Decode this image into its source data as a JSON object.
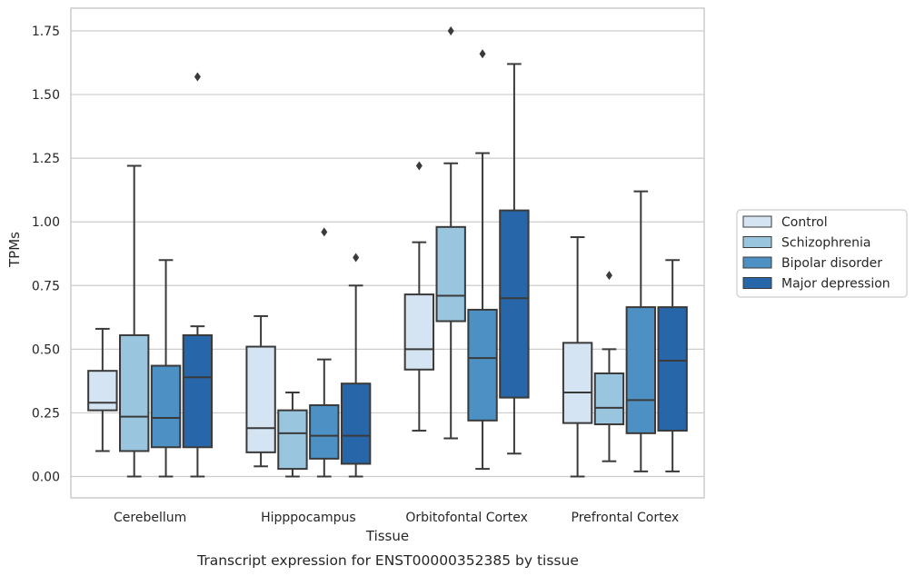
{
  "caption": "Transcript expression for ENST00000352385 by tissue",
  "chart_data": {
    "type": "box",
    "xlabel": "Tissue",
    "ylabel": "TPMs",
    "ylim": [
      -0.08,
      1.84
    ],
    "yticks": [
      "0.00",
      "0.25",
      "0.50",
      "0.75",
      "1.00",
      "1.25",
      "1.50",
      "1.75"
    ],
    "ytick_values": [
      0,
      0.25,
      0.5,
      0.75,
      1.0,
      1.25,
      1.5,
      1.75
    ],
    "grid": "horizontal",
    "legend_position": "right",
    "categories": [
      "Cerebellum",
      "Hipppocampus",
      "Orbitofontal Cortex",
      "Prefrontal Cortex"
    ],
    "series": [
      {
        "name": "Control",
        "color": "#d4e4f2",
        "boxes": [
          {
            "whislo": 0.1,
            "q1": 0.26,
            "med": 0.29,
            "q3": 0.415,
            "whishi": 0.58,
            "fliers": []
          },
          {
            "whislo": 0.04,
            "q1": 0.095,
            "med": 0.19,
            "q3": 0.51,
            "whishi": 0.63,
            "fliers": []
          },
          {
            "whislo": 0.18,
            "q1": 0.42,
            "med": 0.5,
            "q3": 0.715,
            "whishi": 0.92,
            "fliers": [
              1.22
            ]
          },
          {
            "whislo": 0.0,
            "q1": 0.21,
            "med": 0.33,
            "q3": 0.525,
            "whishi": 0.94,
            "fliers": []
          }
        ]
      },
      {
        "name": "Schizophrenia",
        "color": "#9ac5de",
        "boxes": [
          {
            "whislo": 0.0,
            "q1": 0.1,
            "med": 0.235,
            "q3": 0.555,
            "whishi": 1.22,
            "fliers": []
          },
          {
            "whislo": 0.0,
            "q1": 0.03,
            "med": 0.17,
            "q3": 0.26,
            "whishi": 0.33,
            "fliers": []
          },
          {
            "whislo": 0.15,
            "q1": 0.61,
            "med": 0.71,
            "q3": 0.98,
            "whishi": 1.23,
            "fliers": [
              1.75
            ]
          },
          {
            "whislo": 0.06,
            "q1": 0.205,
            "med": 0.27,
            "q3": 0.405,
            "whishi": 0.5,
            "fliers": [
              0.79
            ]
          }
        ]
      },
      {
        "name": "Bipolar disorder",
        "color": "#4d91c4",
        "boxes": [
          {
            "whislo": 0.0,
            "q1": 0.115,
            "med": 0.23,
            "q3": 0.435,
            "whishi": 0.85,
            "fliers": []
          },
          {
            "whislo": 0.0,
            "q1": 0.07,
            "med": 0.16,
            "q3": 0.28,
            "whishi": 0.46,
            "fliers": [
              0.96
            ]
          },
          {
            "whislo": 0.03,
            "q1": 0.22,
            "med": 0.465,
            "q3": 0.655,
            "whishi": 1.27,
            "fliers": [
              1.66
            ]
          },
          {
            "whislo": 0.02,
            "q1": 0.17,
            "med": 0.3,
            "q3": 0.665,
            "whishi": 1.12,
            "fliers": []
          }
        ]
      },
      {
        "name": "Major depression",
        "color": "#2766a8",
        "boxes": [
          {
            "whislo": 0.0,
            "q1": 0.115,
            "med": 0.39,
            "q3": 0.555,
            "whishi": 0.59,
            "fliers": [
              1.57
            ]
          },
          {
            "whislo": 0.0,
            "q1": 0.05,
            "med": 0.16,
            "q3": 0.365,
            "whishi": 0.75,
            "fliers": [
              0.86
            ]
          },
          {
            "whislo": 0.09,
            "q1": 0.31,
            "med": 0.7,
            "q3": 1.045,
            "whishi": 1.62,
            "fliers": []
          },
          {
            "whislo": 0.02,
            "q1": 0.18,
            "med": 0.455,
            "q3": 0.665,
            "whishi": 0.85,
            "fliers": []
          }
        ]
      }
    ]
  }
}
